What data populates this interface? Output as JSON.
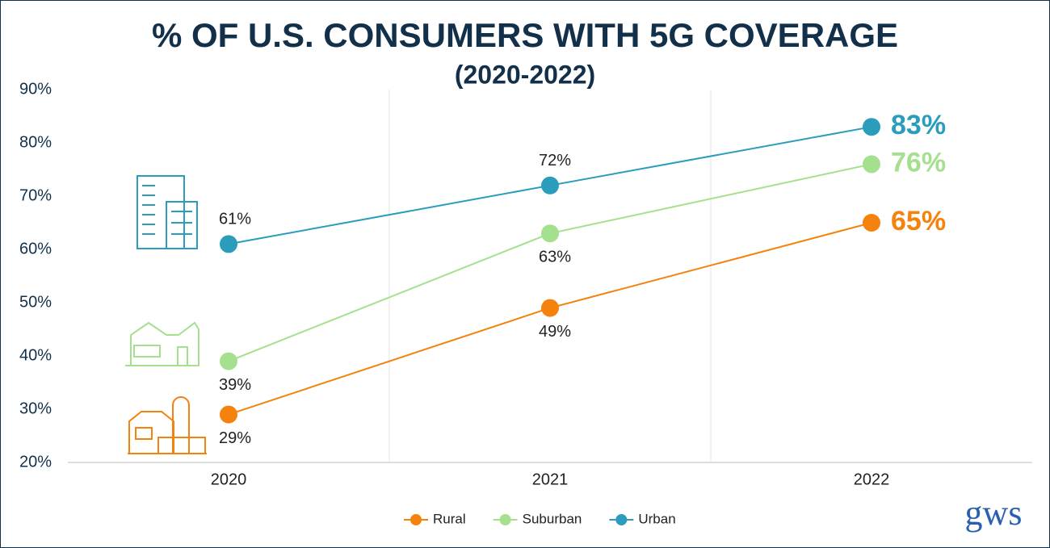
{
  "chart_data": {
    "type": "line",
    "title": "% OF U.S. CONSUMERS WITH 5G COVERAGE",
    "subtitle": "(2020-2022)",
    "categories": [
      "2020",
      "2021",
      "2022"
    ],
    "series": [
      {
        "name": "Rural",
        "color": "#f5820d",
        "values": [
          29,
          49,
          65
        ],
        "value_labels": [
          "29%",
          "49%",
          "65%"
        ]
      },
      {
        "name": "Suburban",
        "color": "#a5e08e",
        "values": [
          39,
          63,
          76
        ],
        "value_labels": [
          "39%",
          "63%",
          "76%"
        ]
      },
      {
        "name": "Urban",
        "color": "#2a9dbd",
        "values": [
          61,
          72,
          83
        ],
        "value_labels": [
          "61%",
          "72%",
          "83%"
        ]
      }
    ],
    "ylim": [
      20,
      90
    ],
    "yticks": [
      {
        "value": 20,
        "label": "20%"
      },
      {
        "value": 30,
        "label": "30%"
      },
      {
        "value": 40,
        "label": "40%"
      },
      {
        "value": 50,
        "label": "50%"
      },
      {
        "value": 60,
        "label": "60%"
      },
      {
        "value": 70,
        "label": "70%"
      },
      {
        "value": 80,
        "label": "80%"
      },
      {
        "value": 90,
        "label": "90%"
      }
    ],
    "legend": "bottom",
    "logo": "gws"
  }
}
